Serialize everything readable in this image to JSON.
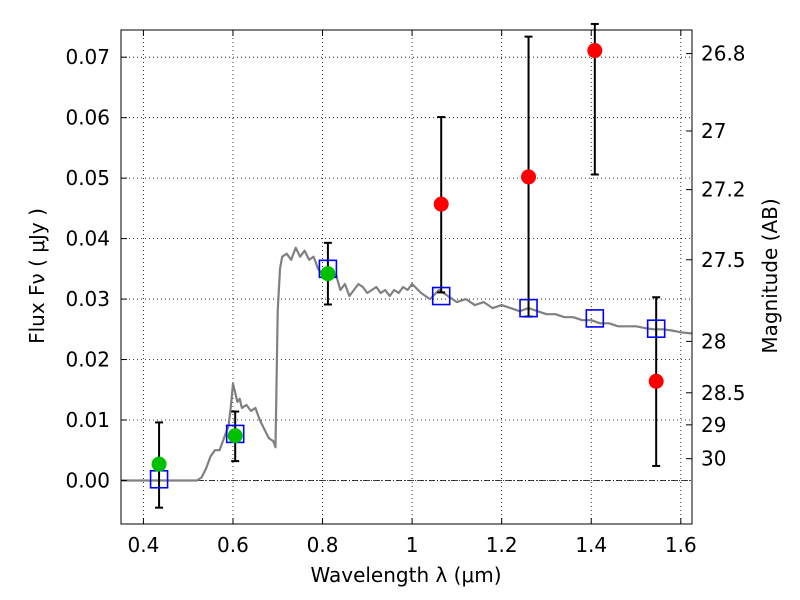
{
  "chart_data": {
    "type": "scatter",
    "xlabel": "Wavelength  λ (μm)",
    "ylabel": "Flux  Fν  ( μJy )",
    "ylabel_right": "Magnitude (AB)",
    "xlim": [
      0.35,
      1.625
    ],
    "ylim": [
      -0.0072,
      0.0745
    ],
    "x_ticks": [
      0.4,
      0.6,
      0.8,
      1.0,
      1.2,
      1.4,
      1.6
    ],
    "x_tick_labels": [
      "0.4",
      "0.6",
      "0.8",
      "1",
      "1.2",
      "1.4",
      "1.6"
    ],
    "y_ticks": [
      0.0,
      0.01,
      0.02,
      0.03,
      0.04,
      0.05,
      0.06,
      0.07
    ],
    "y_tick_labels": [
      "0.00",
      "0.01",
      "0.02",
      "0.03",
      "0.04",
      "0.05",
      "0.06",
      "0.07"
    ],
    "mag_ticks": [
      {
        "label": "26.8",
        "flux": 0.0706
      },
      {
        "label": "27",
        "flux": 0.0578
      },
      {
        "label": "27.2",
        "flux": 0.0481
      },
      {
        "label": "27.5",
        "flux": 0.0365
      },
      {
        "label": "28",
        "flux": 0.023
      },
      {
        "label": "28.5",
        "flux": 0.0145
      },
      {
        "label": "29",
        "flux": 0.0092
      },
      {
        "label": "30",
        "flux": 0.0036
      }
    ],
    "grid": true,
    "colors": {
      "model": "#808080",
      "detections": "#00c000",
      "upper_limits": "#ff0000",
      "model_photometry": "#0000ff",
      "errorbar": "#000000"
    },
    "series": [
      {
        "name": "model_spectrum",
        "style": "line",
        "x": [
          0.35,
          0.52,
          0.53,
          0.54,
          0.55,
          0.56,
          0.57,
          0.58,
          0.59,
          0.595,
          0.6,
          0.605,
          0.61,
          0.615,
          0.62,
          0.63,
          0.64,
          0.65,
          0.66,
          0.67,
          0.68,
          0.69,
          0.695,
          0.7,
          0.705,
          0.71,
          0.72,
          0.73,
          0.74,
          0.75,
          0.76,
          0.77,
          0.78,
          0.79,
          0.8,
          0.81,
          0.82,
          0.83,
          0.84,
          0.85,
          0.86,
          0.87,
          0.88,
          0.89,
          0.9,
          0.91,
          0.92,
          0.93,
          0.94,
          0.95,
          0.96,
          0.97,
          0.98,
          0.99,
          1.0,
          1.02,
          1.04,
          1.06,
          1.08,
          1.1,
          1.12,
          1.14,
          1.16,
          1.18,
          1.2,
          1.22,
          1.24,
          1.26,
          1.28,
          1.3,
          1.32,
          1.34,
          1.36,
          1.38,
          1.4,
          1.42,
          1.44,
          1.46,
          1.48,
          1.5,
          1.52,
          1.54,
          1.56,
          1.58,
          1.6,
          1.625
        ],
        "values": [
          0.0,
          0.0,
          0.0005,
          0.002,
          0.004,
          0.005,
          0.005,
          0.007,
          0.009,
          0.012,
          0.016,
          0.0145,
          0.013,
          0.0135,
          0.012,
          0.0125,
          0.0115,
          0.012,
          0.01,
          0.0085,
          0.007,
          0.0065,
          0.0055,
          0.028,
          0.035,
          0.037,
          0.0375,
          0.0365,
          0.0385,
          0.037,
          0.038,
          0.0365,
          0.037,
          0.035,
          0.034,
          0.0345,
          0.0335,
          0.034,
          0.0315,
          0.0325,
          0.0305,
          0.0315,
          0.0325,
          0.032,
          0.031,
          0.0315,
          0.032,
          0.031,
          0.0315,
          0.0305,
          0.0315,
          0.031,
          0.032,
          0.0315,
          0.0325,
          0.031,
          0.03,
          0.0315,
          0.0305,
          0.0295,
          0.03,
          0.029,
          0.0295,
          0.0285,
          0.029,
          0.0285,
          0.028,
          0.0285,
          0.028,
          0.0275,
          0.0275,
          0.027,
          0.027,
          0.0265,
          0.0265,
          0.026,
          0.026,
          0.0255,
          0.0255,
          0.0255,
          0.0252,
          0.025,
          0.025,
          0.0248,
          0.0245,
          0.0243
        ]
      },
      {
        "name": "detections",
        "style": "green-circle",
        "x": [
          0.435,
          0.605,
          0.812
        ],
        "values": [
          0.0027,
          0.0074,
          0.0342
        ],
        "err_low": [
          -0.0045,
          0.0032,
          0.0291
        ],
        "err_high": [
          0.0096,
          0.0114,
          0.0393
        ]
      },
      {
        "name": "upper_limits",
        "style": "red-circle",
        "x": [
          1.065,
          1.26,
          1.408,
          1.545
        ],
        "values": [
          0.0457,
          0.0502,
          0.0711,
          0.0164
        ],
        "err_low": [
          0.0311,
          0.0271,
          0.0506,
          0.0024
        ],
        "err_high": [
          0.0601,
          0.0734,
          0.0755,
          0.0303
        ]
      },
      {
        "name": "model_photometry",
        "style": "blue-square",
        "x": [
          0.435,
          0.605,
          0.812,
          1.065,
          1.26,
          1.408,
          1.545
        ],
        "values": [
          0.0002,
          0.0077,
          0.035,
          0.0305,
          0.0285,
          0.0268,
          0.0251
        ]
      }
    ]
  }
}
